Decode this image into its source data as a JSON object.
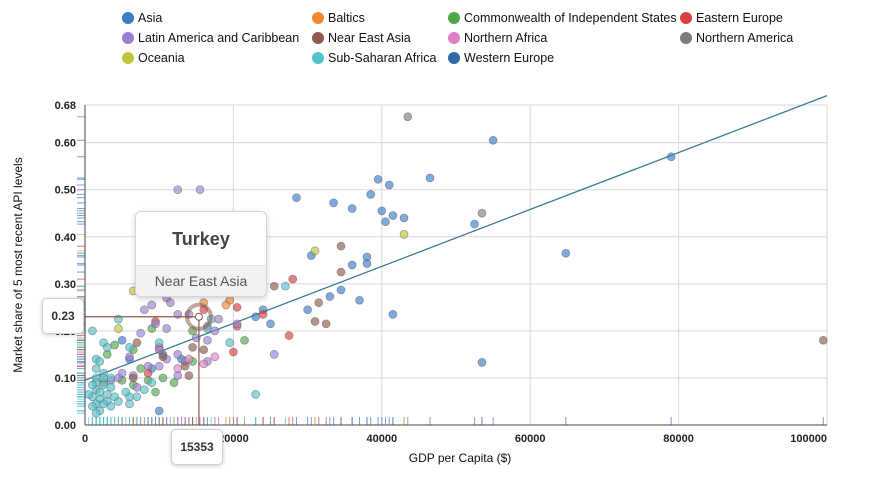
{
  "chart_data": {
    "type": "scatter",
    "xlabel": "GDP per Capita ($)",
    "ylabel": "Market share of 5 most recent API levels",
    "xlim": [
      0,
      100000
    ],
    "ylim": [
      0,
      0.68
    ],
    "x_ticks": [
      "0",
      "20000",
      "40000",
      "60000",
      "80000",
      "100000"
    ],
    "y_ticks": [
      "0.00",
      "0.10",
      "0.20",
      "0.30",
      "0.40",
      "0.50",
      "0.60",
      "0.68"
    ],
    "legend": [
      {
        "name": "Asia",
        "color": "#3a7dc9"
      },
      {
        "name": "Baltics",
        "color": "#f08a2c"
      },
      {
        "name": "Commonwealth of Independent States",
        "color": "#4fa84a"
      },
      {
        "name": "Eastern Europe",
        "color": "#d8413f"
      },
      {
        "name": "Latin America and Caribbean",
        "color": "#9d7fd0"
      },
      {
        "name": "Near East Asia",
        "color": "#8d5a4d"
      },
      {
        "name": "Northern Africa",
        "color": "#dd82c8"
      },
      {
        "name": "Northern America",
        "color": "#7c7c7c"
      },
      {
        "name": "Oceania",
        "color": "#c3c33a"
      },
      {
        "name": "Sub-Saharan Africa",
        "color": "#52c2cd"
      },
      {
        "name": "Western Europe",
        "color": "#2e6aa5"
      }
    ],
    "trendline": {
      "x": [
        0,
        100000
      ],
      "y": [
        0.095,
        0.7
      ]
    },
    "highlight": {
      "name": "Turkey",
      "group": "Near East Asia",
      "x": 15353,
      "y": 0.23,
      "x_label": "15353",
      "y_label": "0.23"
    },
    "series": [
      {
        "name": "Asia",
        "color": "#3a7dc9",
        "points": [
          [
            55000,
            0.605
          ],
          [
            79000,
            0.57
          ],
          [
            46500,
            0.525
          ],
          [
            39500,
            0.522
          ],
          [
            41000,
            0.51
          ],
          [
            38500,
            0.49
          ],
          [
            28500,
            0.483
          ],
          [
            33500,
            0.472
          ],
          [
            40000,
            0.455
          ],
          [
            41500,
            0.445
          ],
          [
            43000,
            0.44
          ],
          [
            40500,
            0.432
          ],
          [
            52500,
            0.427
          ],
          [
            36000,
            0.46
          ],
          [
            64800,
            0.365
          ],
          [
            30500,
            0.36
          ],
          [
            38000,
            0.357
          ],
          [
            36000,
            0.34
          ],
          [
            38000,
            0.343
          ],
          [
            34500,
            0.287
          ],
          [
            33000,
            0.273
          ],
          [
            37000,
            0.265
          ],
          [
            30000,
            0.245
          ],
          [
            24000,
            0.245
          ],
          [
            23000,
            0.23
          ],
          [
            41500,
            0.235
          ],
          [
            25000,
            0.215
          ],
          [
            53500,
            0.133
          ],
          [
            10000,
            0.03
          ],
          [
            10500,
            0.15
          ],
          [
            9000,
            0.12
          ],
          [
            6000,
            0.14
          ],
          [
            13000,
            0.14
          ],
          [
            5000,
            0.18
          ]
        ]
      },
      {
        "name": "Baltics",
        "color": "#f08a2c",
        "points": [
          [
            19500,
            0.265
          ],
          [
            16000,
            0.26
          ],
          [
            19000,
            0.255
          ]
        ]
      },
      {
        "name": "Commonwealth of Independent States",
        "color": "#4fa84a",
        "points": [
          [
            9000,
            0.205
          ],
          [
            14500,
            0.2
          ],
          [
            4000,
            0.17
          ],
          [
            6500,
            0.16
          ],
          [
            21500,
            0.18
          ],
          [
            3000,
            0.15
          ],
          [
            7500,
            0.12
          ],
          [
            14500,
            0.135
          ],
          [
            10500,
            0.1
          ],
          [
            5000,
            0.095
          ],
          [
            8500,
            0.095
          ],
          [
            2500,
            0.09
          ],
          [
            6500,
            0.085
          ],
          [
            12000,
            0.09
          ],
          [
            9500,
            0.07
          ]
        ]
      },
      {
        "name": "Eastern Europe",
        "color": "#d8413f",
        "points": [
          [
            28000,
            0.31
          ],
          [
            20500,
            0.25
          ],
          [
            16000,
            0.245
          ],
          [
            24000,
            0.235
          ],
          [
            9500,
            0.22
          ],
          [
            20500,
            0.21
          ],
          [
            27500,
            0.19
          ],
          [
            10000,
            0.165
          ],
          [
            20000,
            0.155
          ],
          [
            8500,
            0.11
          ]
        ]
      },
      {
        "name": "Latin America and Caribbean",
        "color": "#9d7fd0",
        "points": [
          [
            12500,
            0.5
          ],
          [
            15500,
            0.5
          ],
          [
            11000,
            0.27
          ],
          [
            11500,
            0.26
          ],
          [
            9000,
            0.255
          ],
          [
            8000,
            0.245
          ],
          [
            12500,
            0.235
          ],
          [
            14000,
            0.235
          ],
          [
            18000,
            0.225
          ],
          [
            20500,
            0.215
          ],
          [
            9500,
            0.215
          ],
          [
            11000,
            0.205
          ],
          [
            16500,
            0.21
          ],
          [
            17500,
            0.2
          ],
          [
            7500,
            0.195
          ],
          [
            15000,
            0.185
          ],
          [
            16500,
            0.18
          ],
          [
            10000,
            0.16
          ],
          [
            12500,
            0.15
          ],
          [
            25500,
            0.15
          ],
          [
            6000,
            0.145
          ],
          [
            11000,
            0.14
          ],
          [
            13500,
            0.135
          ],
          [
            8500,
            0.125
          ],
          [
            10000,
            0.125
          ],
          [
            16500,
            0.135
          ],
          [
            5000,
            0.11
          ],
          [
            6500,
            0.105
          ],
          [
            12500,
            0.105
          ],
          [
            4500,
            0.1
          ],
          [
            3500,
            0.095
          ],
          [
            7000,
            0.08
          ]
        ]
      },
      {
        "name": "Near East Asia",
        "color": "#8d5a4d",
        "points": [
          [
            34500,
            0.38
          ],
          [
            34500,
            0.325
          ],
          [
            31500,
            0.26
          ],
          [
            25500,
            0.295
          ],
          [
            31000,
            0.22
          ],
          [
            32500,
            0.215
          ],
          [
            14500,
            0.165
          ],
          [
            16000,
            0.16
          ],
          [
            10500,
            0.145
          ],
          [
            13500,
            0.125
          ],
          [
            99500,
            0.18
          ],
          [
            7000,
            0.175
          ],
          [
            6500,
            0.1
          ],
          [
            14000,
            0.105
          ]
        ]
      },
      {
        "name": "Northern Africa",
        "color": "#dd82c8",
        "points": [
          [
            17500,
            0.145
          ],
          [
            14000,
            0.14
          ],
          [
            12500,
            0.12
          ],
          [
            16000,
            0.13
          ]
        ]
      },
      {
        "name": "Northern America",
        "color": "#7c7c7c",
        "points": [
          [
            43500,
            0.655
          ],
          [
            53500,
            0.45
          ]
        ]
      },
      {
        "name": "Oceania",
        "color": "#c3c33a",
        "points": [
          [
            43000,
            0.405
          ],
          [
            31000,
            0.37
          ],
          [
            6500,
            0.285
          ],
          [
            4500,
            0.205
          ]
        ]
      },
      {
        "name": "Sub-Saharan Africa",
        "color": "#52c2cd",
        "points": [
          [
            27000,
            0.295
          ],
          [
            17000,
            0.225
          ],
          [
            4500,
            0.225
          ],
          [
            16500,
            0.205
          ],
          [
            19500,
            0.175
          ],
          [
            6000,
            0.165
          ],
          [
            2500,
            0.175
          ],
          [
            3000,
            0.165
          ],
          [
            10000,
            0.175
          ],
          [
            23000,
            0.065
          ],
          [
            1000,
            0.2
          ],
          [
            1500,
            0.14
          ],
          [
            2000,
            0.135
          ],
          [
            1500,
            0.12
          ],
          [
            2500,
            0.11
          ],
          [
            1500,
            0.1
          ],
          [
            2500,
            0.1
          ],
          [
            3500,
            0.1
          ],
          [
            1500,
            0.09
          ],
          [
            2500,
            0.085
          ],
          [
            3500,
            0.08
          ],
          [
            1500,
            0.075
          ],
          [
            2000,
            0.07
          ],
          [
            3000,
            0.065
          ],
          [
            4000,
            0.06
          ],
          [
            1000,
            0.06
          ],
          [
            2000,
            0.055
          ],
          [
            3000,
            0.05
          ],
          [
            1500,
            0.045
          ],
          [
            2500,
            0.045
          ],
          [
            1000,
            0.04
          ],
          [
            2000,
            0.03
          ],
          [
            1500,
            0.025
          ],
          [
            3500,
            0.04
          ],
          [
            6000,
            0.06
          ],
          [
            5500,
            0.07
          ],
          [
            7000,
            0.06
          ],
          [
            6000,
            0.045
          ],
          [
            4500,
            0.05
          ],
          [
            8000,
            0.075
          ],
          [
            9000,
            0.09
          ],
          [
            1000,
            0.085
          ],
          [
            500,
            0.065
          ]
        ]
      },
      {
        "name": "Western Europe",
        "color": "#2e6aa5",
        "points": []
      }
    ]
  }
}
